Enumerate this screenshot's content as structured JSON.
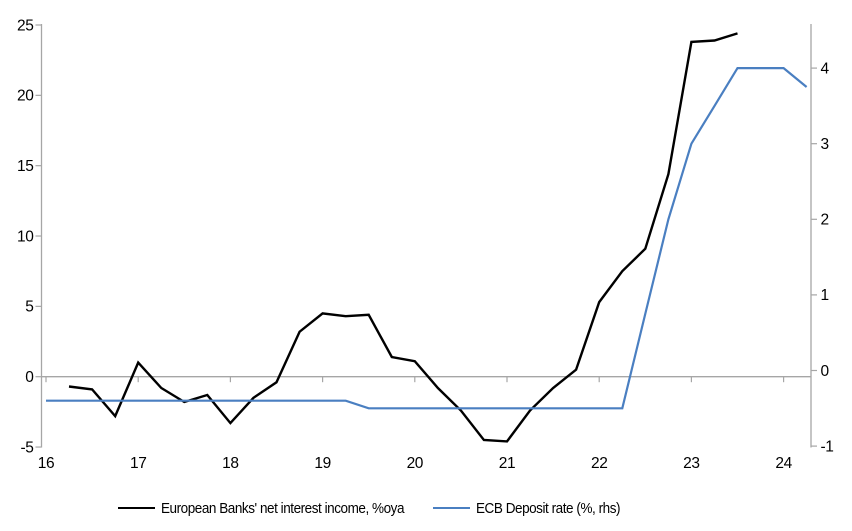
{
  "chart_data": {
    "type": "line",
    "title": "",
    "x_axis": {
      "tick_labels": [
        "16",
        "17",
        "18",
        "19",
        "20",
        "21",
        "22",
        "23",
        "24"
      ],
      "tick_years": [
        2016,
        2017,
        2018,
        2019,
        2020,
        2021,
        2022,
        2023,
        2024
      ],
      "note": "years 2016-2024, quarterly data points"
    },
    "y_axis_left": {
      "tick_values": [
        25,
        20,
        15,
        10,
        5,
        0,
        -5
      ],
      "range": [
        -5,
        25
      ]
    },
    "y_axis_right": {
      "tick_values": [
        4,
        3,
        2,
        1,
        0,
        -1
      ],
      "range": [
        -1,
        4.6
      ]
    },
    "grid": "zero-line-only",
    "legend_position": "bottom",
    "series": [
      {
        "name": "European Banks' net interest income, %oya",
        "axis": "left",
        "color": "#000000",
        "x": [
          2016.25,
          2016.5,
          2016.75,
          2017.0,
          2017.25,
          2017.5,
          2017.75,
          2018.0,
          2018.25,
          2018.5,
          2018.75,
          2019.0,
          2019.25,
          2019.5,
          2019.75,
          2020.0,
          2020.25,
          2020.5,
          2020.75,
          2021.0,
          2021.25,
          2021.5,
          2021.75,
          2022.0,
          2022.25,
          2022.5,
          2022.75,
          2023.0,
          2023.25,
          2023.5
        ],
        "values": [
          -0.7,
          -0.9,
          -2.8,
          1.0,
          -0.8,
          -1.8,
          -1.3,
          -3.3,
          -1.5,
          -0.4,
          3.2,
          4.5,
          4.3,
          4.4,
          1.4,
          1.1,
          -0.8,
          -2.4,
          -4.5,
          -4.6,
          -2.4,
          -0.8,
          0.5,
          5.3,
          7.5,
          9.1,
          14.4,
          23.8,
          23.9,
          24.4
        ]
      },
      {
        "name": "ECB Deposit rate (%, rhs)",
        "axis": "right",
        "color": "#4a7fc1",
        "x": [
          2016.0,
          2016.25,
          2016.5,
          2016.75,
          2017.0,
          2017.25,
          2017.5,
          2017.75,
          2018.0,
          2018.25,
          2018.5,
          2018.75,
          2019.0,
          2019.25,
          2019.5,
          2019.75,
          2020.0,
          2020.25,
          2020.5,
          2020.75,
          2021.0,
          2021.25,
          2021.5,
          2021.75,
          2022.0,
          2022.25,
          2022.5,
          2022.75,
          2023.0,
          2023.25,
          2023.5,
          2023.75,
          2024.0,
          2024.25
        ],
        "values": [
          -0.4,
          -0.4,
          -0.4,
          -0.4,
          -0.4,
          -0.4,
          -0.4,
          -0.4,
          -0.4,
          -0.4,
          -0.4,
          -0.4,
          -0.4,
          -0.4,
          -0.5,
          -0.5,
          -0.5,
          -0.5,
          -0.5,
          -0.5,
          -0.5,
          -0.5,
          -0.5,
          -0.5,
          -0.5,
          -0.5,
          0.75,
          2.0,
          3.0,
          3.5,
          4.0,
          4.0,
          4.0,
          3.75
        ]
      }
    ]
  },
  "colors": {
    "background": "#ffffff",
    "axis": "#a6a6a6",
    "text": "#000000",
    "series_black": "#000000",
    "series_blue": "#4a7fc1"
  }
}
